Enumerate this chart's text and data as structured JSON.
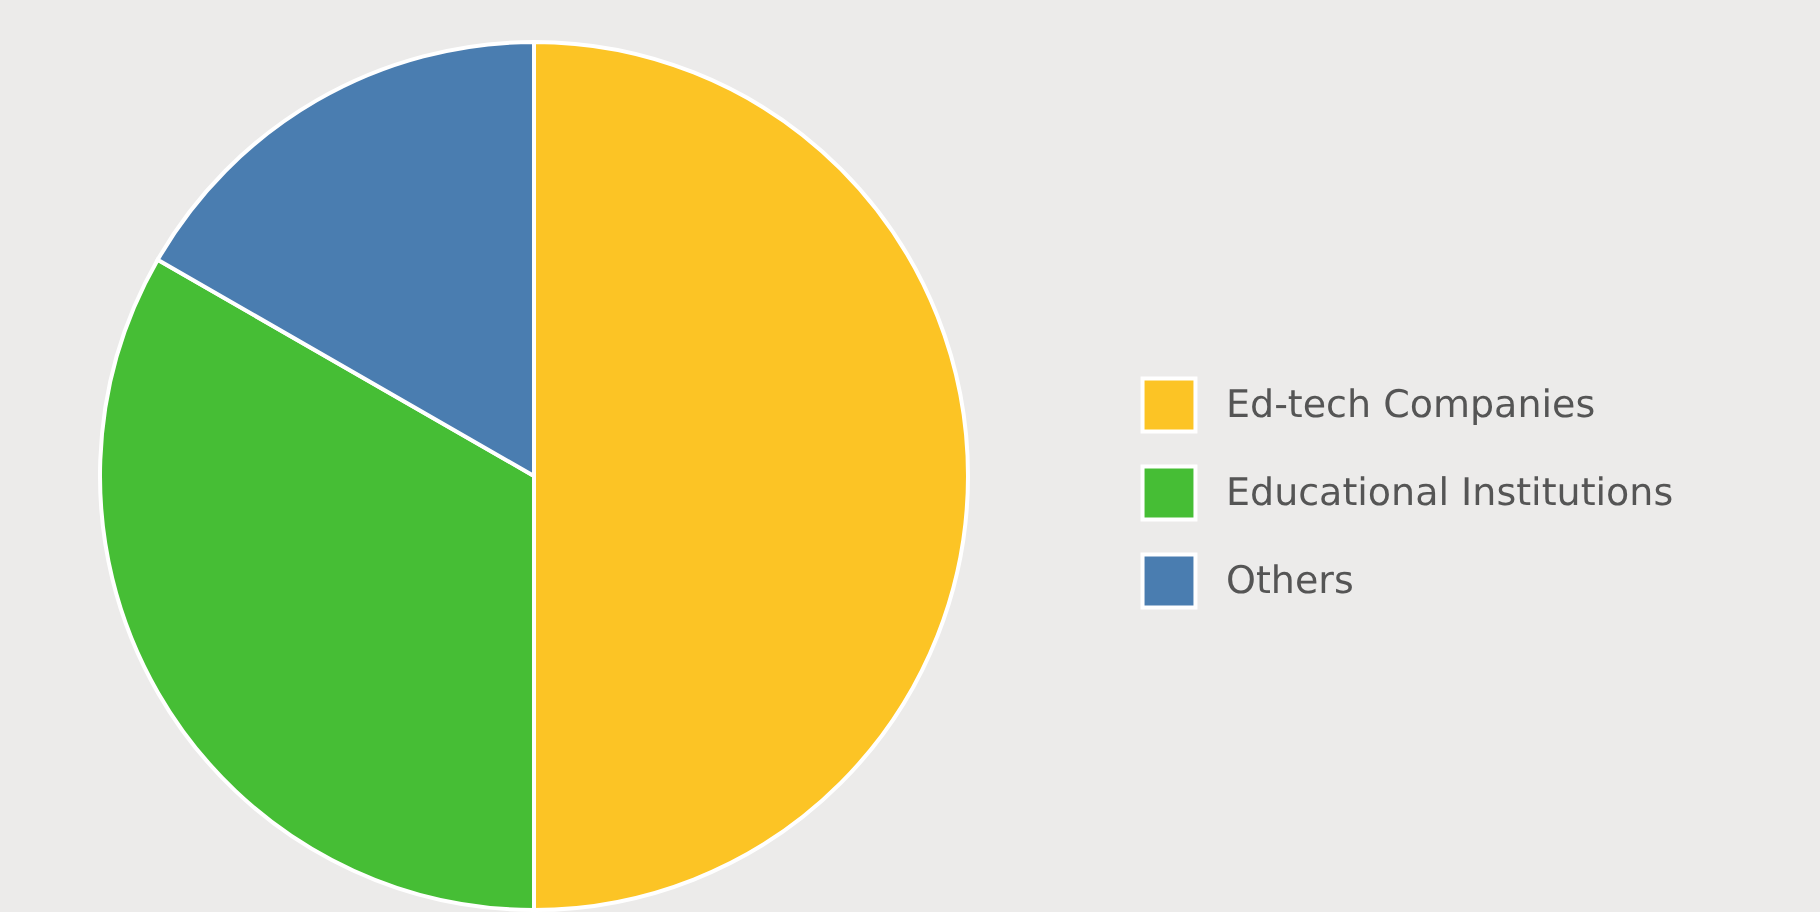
{
  "chart_data": {
    "type": "pie",
    "categories": [
      "Ed-tech Companies",
      "Educational Institutions",
      "Others"
    ],
    "values": [
      50,
      33.3,
      16.7
    ],
    "colors": [
      "#fcc425",
      "#46be35",
      "#4a7db0"
    ],
    "legend": "right"
  }
}
